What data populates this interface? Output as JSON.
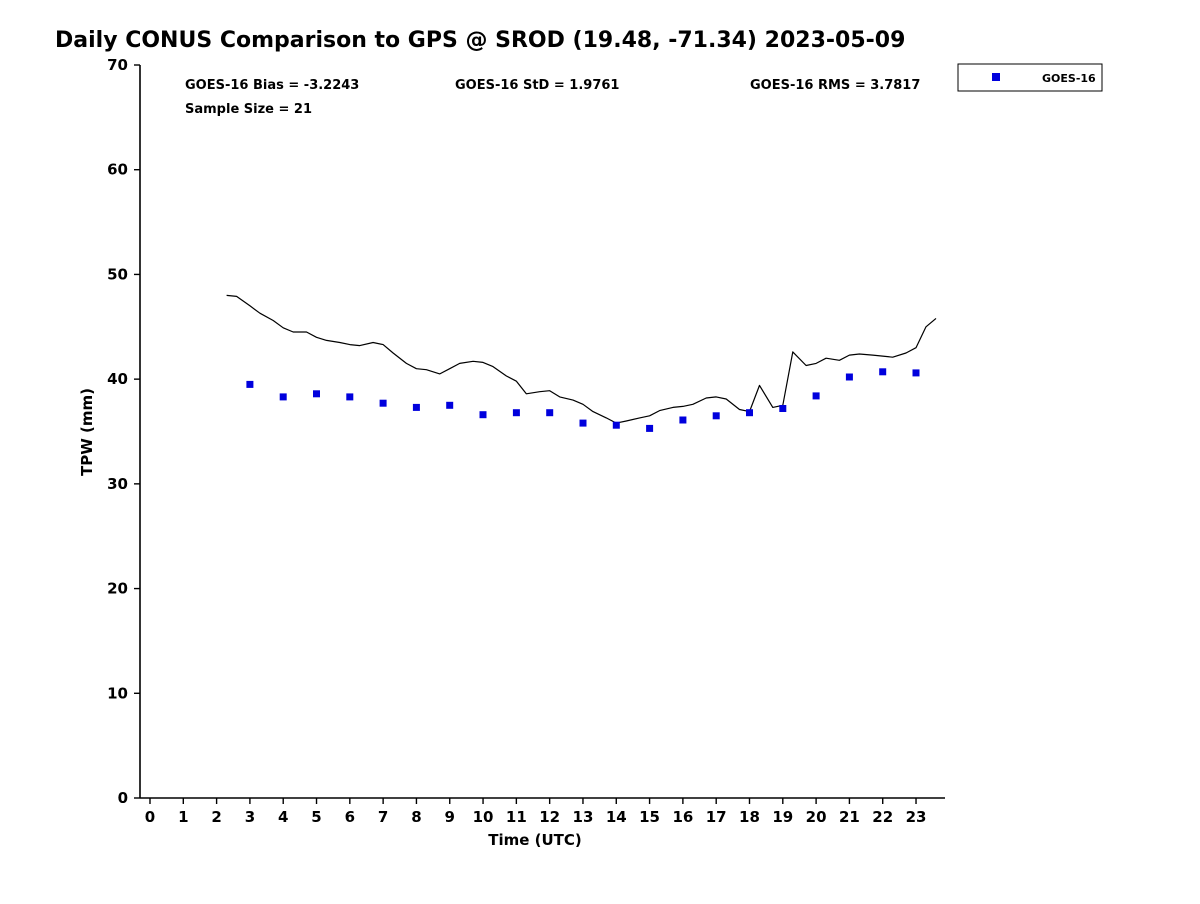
{
  "title": "Daily CONUS Comparison to GPS @ SROD (19.48, -71.34) 2023-05-09",
  "stats": {
    "bias": "GOES-16 Bias = -3.2243",
    "std": "GOES-16 StD = 1.9761",
    "rms": "GOES-16 RMS = 3.7817",
    "sample_size": "Sample Size = 21"
  },
  "legend": {
    "label": "GOES-16",
    "marker_color": "#0000dd"
  },
  "chart_data": {
    "type": "line+scatter",
    "title": "Daily CONUS Comparison to GPS @ SROD (19.48, -71.34) 2023-05-09",
    "xlabel": "Time (UTC)",
    "ylabel": "TPW (mm)",
    "xlim": [
      -0.3,
      23.87
    ],
    "ylim": [
      0,
      70
    ],
    "xticks": [
      0,
      1,
      2,
      3,
      4,
      5,
      6,
      7,
      8,
      9,
      10,
      11,
      12,
      13,
      14,
      15,
      16,
      17,
      18,
      19,
      20,
      21,
      22,
      23
    ],
    "yticks": [
      0,
      10,
      20,
      30,
      40,
      50,
      60,
      70
    ],
    "grid": false,
    "legend_position": "top-right",
    "series": [
      {
        "name": "GPS",
        "type": "line",
        "color": "#000000",
        "x": [
          2.3,
          2.6,
          3.0,
          3.3,
          3.7,
          4.0,
          4.3,
          4.7,
          5.0,
          5.3,
          5.7,
          6.0,
          6.3,
          6.7,
          7.0,
          7.3,
          7.7,
          8.0,
          8.3,
          8.7,
          9.0,
          9.3,
          9.7,
          10.0,
          10.3,
          10.7,
          11.0,
          11.3,
          11.7,
          12.0,
          12.3,
          12.7,
          13.0,
          13.3,
          13.7,
          14.0,
          14.3,
          14.7,
          15.0,
          15.3,
          15.7,
          16.0,
          16.3,
          16.7,
          17.0,
          17.3,
          17.7,
          18.0,
          18.3,
          18.7,
          19.0,
          19.3,
          19.7,
          20.0,
          20.3,
          20.7,
          21.0,
          21.3,
          21.7,
          22.0,
          22.3,
          22.7,
          23.0,
          23.3,
          23.6
        ],
        "y": [
          48.0,
          47.9,
          47.0,
          46.3,
          45.6,
          44.9,
          44.5,
          44.5,
          44.0,
          43.7,
          43.5,
          43.3,
          43.2,
          43.5,
          43.3,
          42.5,
          41.5,
          41.0,
          40.9,
          40.5,
          41.0,
          41.5,
          41.7,
          41.6,
          41.2,
          40.3,
          39.8,
          38.6,
          38.8,
          38.9,
          38.3,
          38.0,
          37.6,
          36.9,
          36.3,
          35.8,
          36.0,
          36.3,
          36.5,
          37.0,
          37.3,
          37.4,
          37.6,
          38.2,
          38.3,
          38.1,
          37.1,
          36.9,
          39.4,
          37.3,
          37.5,
          42.6,
          41.3,
          41.5,
          42.0,
          41.8,
          42.3,
          42.4,
          42.3,
          42.2,
          42.1,
          42.5,
          43.0,
          45.0,
          45.8
        ]
      },
      {
        "name": "GOES-16",
        "type": "scatter",
        "color": "#0000dd",
        "x": [
          3,
          4,
          5,
          6,
          7,
          8,
          9,
          10,
          11,
          12,
          13,
          14,
          15,
          16,
          17,
          18,
          19,
          20,
          21,
          22,
          23
        ],
        "y": [
          39.5,
          38.3,
          38.6,
          38.3,
          37.7,
          37.3,
          37.5,
          36.6,
          36.8,
          36.8,
          35.8,
          35.6,
          35.3,
          36.1,
          36.5,
          36.8,
          37.2,
          38.4,
          40.2,
          40.7,
          40.6
        ]
      }
    ]
  }
}
